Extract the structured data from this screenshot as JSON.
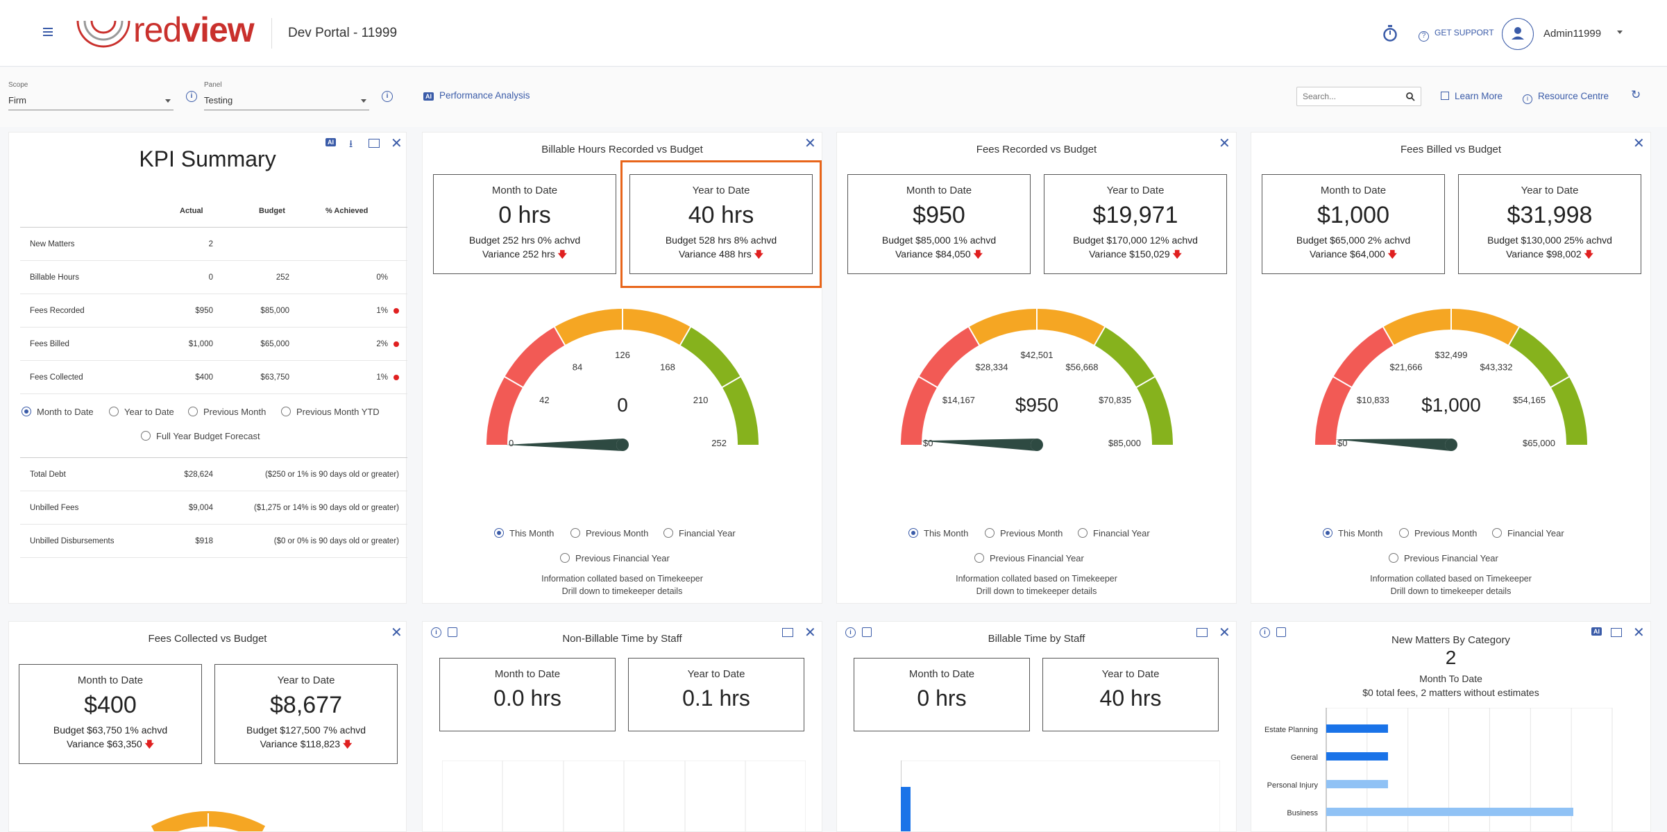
{
  "header": {
    "logo_text_red": "red",
    "logo_text_view": "view",
    "portal_title": "Dev Portal - 11999",
    "get_support": "GET SUPPORT",
    "user_name": "Admin11999"
  },
  "filters": {
    "scope_label": "Scope",
    "scope_value": "Firm",
    "panel_label": "Panel",
    "panel_value": "Testing",
    "performance_analysis": "Performance Analysis",
    "search_placeholder": "Search...",
    "learn_more": "Learn More",
    "resource_centre": "Resource Centre"
  },
  "kpi": {
    "title": "KPI Summary",
    "ai_badge": "AI",
    "col_actual": "Actual",
    "col_budget": "Budget",
    "col_achieved": "% Achieved",
    "rows": [
      {
        "label": "New Matters",
        "actual": "2",
        "budget": "",
        "achieved": ""
      },
      {
        "label": "Billable Hours",
        "actual": "0",
        "budget": "252",
        "achieved": "0%"
      },
      {
        "label": "Fees Recorded",
        "actual": "$950",
        "budget": "$85,000",
        "achieved": "1%"
      },
      {
        "label": "Fees Billed",
        "actual": "$1,000",
        "budget": "$65,000",
        "achieved": "2%"
      },
      {
        "label": "Fees Collected",
        "actual": "$400",
        "budget": "$63,750",
        "achieved": "1%"
      }
    ],
    "periods": [
      "Month to Date",
      "Year to Date",
      "Previous Month",
      "Previous Month YTD",
      "Full Year Budget Forecast"
    ],
    "debt_rows": [
      {
        "label": "Total Debt",
        "amount": "$28,624",
        "note": "($250 or 1% is 90 days old or greater)"
      },
      {
        "label": "Unbilled Fees",
        "amount": "$9,004",
        "note": "($1,275 or 14% is 90 days old or greater)"
      },
      {
        "label": "Unbilled Disbursements",
        "amount": "$918",
        "note": "($0 or 0% is 90 days old or greater)"
      }
    ]
  },
  "common": {
    "mtd": "Month to Date",
    "ytd": "Year to Date",
    "this_month": "This Month",
    "previous_month": "Previous Month",
    "financial_year": "Financial Year",
    "previous_financial_year": "Previous Financial Year",
    "info_line1": "Information collated based on Timekeeper",
    "info_line2": "Drill down to timekeeper details"
  },
  "billable_hours": {
    "title": "Billable Hours Recorded vs Budget",
    "mtd_value": "0 hrs",
    "mtd_budget": "Budget 252 hrs 0% achvd",
    "mtd_variance": "Variance 252 hrs",
    "ytd_value": "40 hrs",
    "ytd_budget": "Budget 528 hrs 8% achvd",
    "ytd_variance": "Variance 488 hrs",
    "gauge_value": "0",
    "gauge_fraction": 0,
    "ticks": [
      "0",
      "42",
      "84",
      "126",
      "168",
      "210",
      "252"
    ]
  },
  "fees_recorded": {
    "title": "Fees Recorded vs Budget",
    "mtd_value": "$950",
    "mtd_budget": "Budget $85,000 1% achvd",
    "mtd_variance": "Variance $84,050",
    "ytd_value": "$19,971",
    "ytd_budget": "Budget $170,000 12% achvd",
    "ytd_variance": "Variance $150,029",
    "gauge_value": "$950",
    "gauge_fraction": 0.011,
    "ticks": [
      "$0",
      "$14,167",
      "$28,334",
      "$42,501",
      "$56,668",
      "$70,835",
      "$85,000"
    ]
  },
  "fees_billed": {
    "title": "Fees Billed vs Budget",
    "mtd_value": "$1,000",
    "mtd_budget": "Budget $65,000 2% achvd",
    "mtd_variance": "Variance $64,000",
    "ytd_value": "$31,998",
    "ytd_budget": "Budget $130,000 25% achvd",
    "ytd_variance": "Variance $98,002",
    "gauge_value": "$1,000",
    "gauge_fraction": 0.015,
    "ticks": [
      "$0",
      "$10,833",
      "$21,666",
      "$32,499",
      "$43,332",
      "$54,165",
      "$65,000"
    ]
  },
  "fees_collected": {
    "title": "Fees Collected vs Budget",
    "mtd_value": "$400",
    "mtd_budget": "Budget $63,750 1% achvd",
    "mtd_variance": "Variance $63,350",
    "ytd_value": "$8,677",
    "ytd_budget": "Budget $127,500 7% achvd",
    "ytd_variance": "Variance $118,823"
  },
  "non_billable": {
    "title": "Non-Billable Time by Staff",
    "mtd_value": "0.0 hrs",
    "ytd_value": "0.1 hrs"
  },
  "billable_time": {
    "title": "Billable Time by Staff",
    "mtd_value": "0 hrs",
    "ytd_value": "40 hrs"
  },
  "new_matters": {
    "title": "New Matters By Category",
    "count": "2",
    "period": "Month To Date",
    "summary": "$0 total fees, 2 matters without estimates"
  },
  "chart_data": [
    {
      "type": "bar",
      "orientation": "horizontal",
      "categories": [
        "Estate Planning",
        "General",
        "Personal Injury",
        "Business"
      ],
      "values": [
        0.25,
        0.25,
        0.25,
        1.0
      ]
    }
  ],
  "colors": {
    "accent": "#3a5ba8",
    "gauge_red": "#f25a55",
    "gauge_orange": "#f5a623",
    "gauge_green": "#86b21d",
    "needle": "#2e4a42",
    "bar_dark": "#1a73e8",
    "bar_light": "#90c2f5",
    "highlight": "#e8651a"
  }
}
